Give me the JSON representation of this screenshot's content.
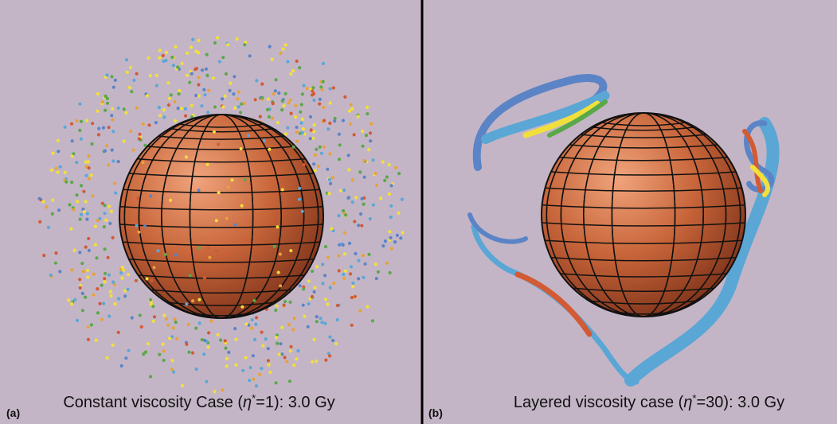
{
  "panels": [
    {
      "label": "(a)",
      "caption": {
        "prefix": "Constant viscosity Case (",
        "symbol": "η",
        "superscript": "*",
        "suffix": "=1): 3.0 Gy"
      }
    },
    {
      "label": "(b)",
      "caption": {
        "prefix": "Layered viscosity case (",
        "symbol": "η",
        "superscript": "*",
        "suffix": "=30): 3.0 Gy"
      }
    }
  ]
}
